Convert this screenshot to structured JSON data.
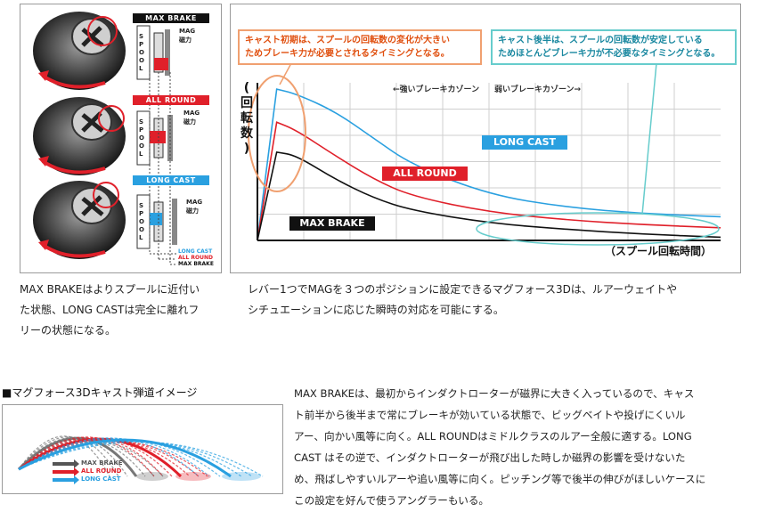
{
  "mechanism": {
    "labels": {
      "max_brake": "MAX BRAKE",
      "all_round": "ALL ROUND",
      "long_cast": "LONG CAST",
      "mag": "MAG",
      "magnet": "磁力",
      "spool": "SPOOL",
      "legend_long_cast": "LONG CAST",
      "legend_all_round": "ALL ROUND",
      "legend_max_brake": "MAX BRAKE"
    },
    "caption": [
      "MAX BRAKEはよりスプールに近付い",
      "た状態、LONG CASTは完全に離れフ",
      "リーの状態になる。"
    ]
  },
  "chart": {
    "callout_left": [
      "キャスト初期は、スプールの回転数の変化が大きい",
      "ためブレーキ力が必要とされるタイミングとなる。"
    ],
    "callout_right": [
      "キャスト後半は、スプールの回転数が安定している",
      "ためほとんどブレーキ力が不必要なタイミングとなる。"
    ],
    "zone_strong": "←強いブレーキカゾーン",
    "zone_weak": "弱いブレーキカゾーン→",
    "ylabel_chars": [
      "(",
      "回",
      "転",
      "数",
      ")"
    ],
    "xlabel": "（スプール回転時間）",
    "series_labels": {
      "long_cast": "LONG CAST",
      "all_round": "ALL ROUND",
      "max_brake": "MAX BRAKE"
    },
    "caption": [
      "レバー1つでMAGを３つのポジションに設定できるマグフォース3Dは、ルアーウェイトや",
      "シチュエーションに応じた瞬時の対応を可能にする。"
    ]
  },
  "chart_data": {
    "type": "line",
    "title": "",
    "xlabel": "（スプール回転時間）",
    "ylabel": "(回転数)",
    "x": [
      0,
      0.5,
      1,
      2,
      3,
      4,
      6,
      8,
      10,
      12
    ],
    "series": [
      {
        "name": "LONG CAST",
        "color": "#2aa0e0",
        "values": [
          0,
          9.6,
          9.3,
          8.2,
          6.5,
          4.8,
          2.9,
          2.1,
          1.7,
          1.5
        ]
      },
      {
        "name": "ALL ROUND",
        "color": "#e0202a",
        "values": [
          0,
          7.5,
          7.0,
          5.4,
          3.9,
          2.8,
          1.8,
          1.3,
          1.0,
          0.8
        ]
      },
      {
        "name": "MAX BRAKE",
        "color": "#111111",
        "values": [
          0,
          5.6,
          5.4,
          3.9,
          2.7,
          1.9,
          1.1,
          0.7,
          0.4,
          0.2
        ]
      }
    ],
    "grid": true,
    "legend": "inline"
  },
  "trajectory": {
    "heading": "■マグフォース3Dキャスト弾道イメージ",
    "legend": {
      "max_brake": "MAX BRAKE",
      "all_round": "ALL ROUND",
      "long_cast": "LONG CAST"
    },
    "colors": {
      "max_brake": "#555555",
      "all_round": "#e0202a",
      "long_cast": "#2aa0e0"
    }
  },
  "description": [
    "MAX BRAKEは、最初からインダクトローターが磁界に大きく入っているので、キャス",
    "ト前半から後半まで常にブレーキが効いている状態で、ビッグベイトや投げにくいル",
    "アー、向かい風等に向く。ALL ROUNDはミドルクラスのルアー全般に適する。LONG",
    "CAST はその逆で、インダクトローターが飛び出した時しか磁界の影響を受けないた",
    "め、飛ばしやすいルアーや追い風等に向く。ピッチング等で後半の伸びがほしいケースに",
    "この設定を好んで使うアングラーもいる。"
  ]
}
